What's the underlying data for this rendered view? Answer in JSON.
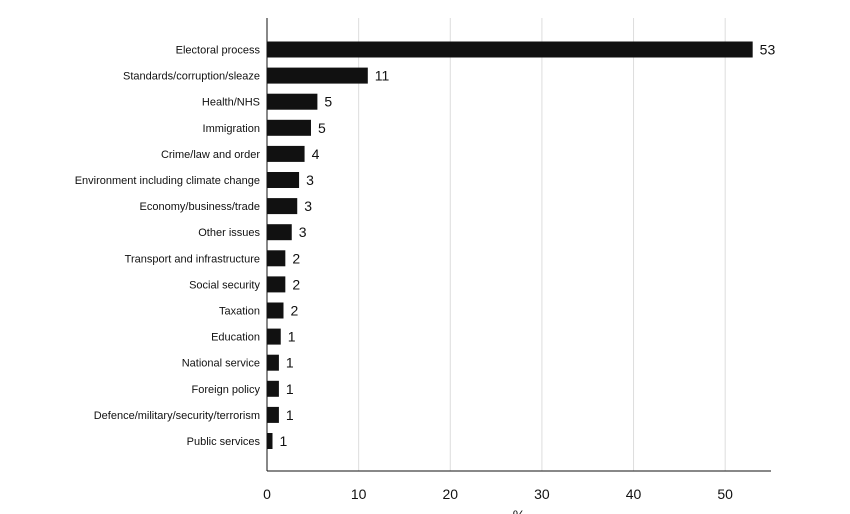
{
  "chart_data": {
    "type": "bar",
    "orientation": "horizontal",
    "categories": [
      "Electoral process",
      "Standards/corruption/sleaze",
      "Health/NHS",
      "Immigration",
      "Crime/law and order",
      "Environment including climate change",
      "Economy/business/trade",
      "Other issues",
      "Transport and infrastructure",
      "Social security",
      "Taxation",
      "Education",
      "National service",
      "Foreign policy",
      "Defence/military/security/terrorism",
      "Public services"
    ],
    "values": [
      53,
      11,
      5.5,
      4.8,
      4.1,
      3.5,
      3.3,
      2.7,
      2.0,
      2.0,
      1.8,
      1.5,
      1.3,
      1.3,
      1.3,
      0.6
    ],
    "data_labels": [
      "53",
      "11",
      "5",
      "5",
      "4",
      "3",
      "3",
      "3",
      "2",
      "2",
      "2",
      "1",
      "1",
      "1",
      "1",
      "1"
    ],
    "xlabel": "%",
    "xlim": [
      0,
      55
    ],
    "xticks": [
      0,
      10,
      20,
      30,
      40,
      50
    ],
    "xtick_labels": [
      "0",
      "10",
      "20",
      "30",
      "40",
      "50"
    ],
    "grid": "vertical",
    "colors": {
      "bar": "#111111",
      "grid": "#dddddd",
      "axis": "#111111",
      "text": "#111111"
    }
  }
}
